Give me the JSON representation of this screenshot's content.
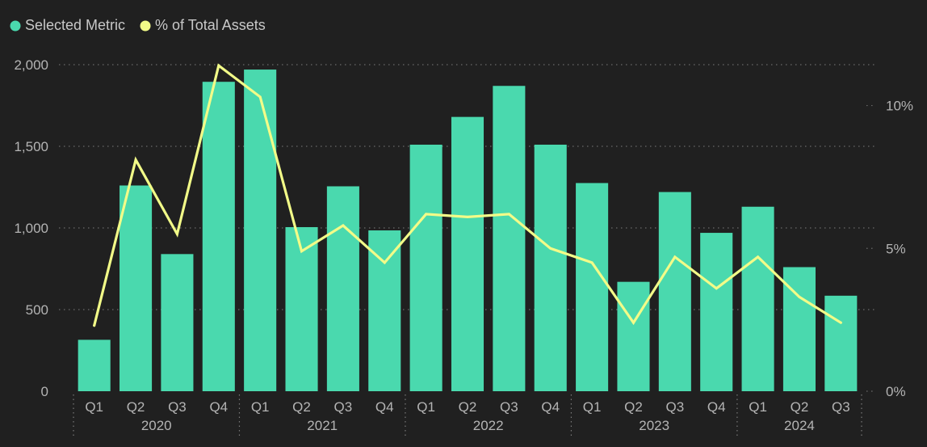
{
  "chart_data": {
    "type": "bar",
    "legend": {
      "placement": "top-left",
      "items": [
        {
          "label": "Selected Metric",
          "color": "#4ad9ae"
        },
        {
          "label": "% of Total Assets",
          "color": "#f2fb88"
        }
      ]
    },
    "categories": [
      "Q1",
      "Q2",
      "Q3",
      "Q4",
      "Q1",
      "Q2",
      "Q3",
      "Q4",
      "Q1",
      "Q2",
      "Q3",
      "Q4",
      "Q1",
      "Q2",
      "Q3",
      "Q4",
      "Q1",
      "Q2",
      "Q3"
    ],
    "years": [
      {
        "label": "2020",
        "count": 4
      },
      {
        "label": "2021",
        "count": 4
      },
      {
        "label": "2022",
        "count": 4
      },
      {
        "label": "2023",
        "count": 4
      },
      {
        "label": "2024",
        "count": 3
      }
    ],
    "series": [
      {
        "name": "Selected Metric",
        "type": "bar",
        "axis": "left",
        "color": "#4ad9ae",
        "values": [
          315,
          1260,
          840,
          1895,
          1970,
          1005,
          1255,
          985,
          1510,
          1680,
          1870,
          1510,
          1275,
          670,
          1220,
          970,
          1130,
          760,
          585
        ]
      },
      {
        "name": "% of Total Assets",
        "type": "line",
        "axis": "right",
        "color": "#f2fb88",
        "values": [
          2.3,
          8.1,
          5.5,
          11.4,
          10.3,
          4.9,
          5.8,
          4.5,
          6.2,
          6.1,
          6.2,
          5.0,
          4.5,
          2.4,
          4.7,
          3.6,
          4.7,
          3.3,
          2.4
        ]
      }
    ],
    "left_axis": {
      "ticks": [
        "0",
        "500",
        "1,000",
        "1,500",
        "2,000"
      ],
      "tick_values": [
        0,
        500,
        1000,
        1500,
        2000
      ],
      "ylim": [
        0,
        2000
      ]
    },
    "right_axis": {
      "ticks": [
        "0%",
        "5%",
        "10%"
      ],
      "tick_values": [
        0,
        5,
        10
      ],
      "ylim": [
        0,
        11.43
      ]
    },
    "grid": true
  }
}
